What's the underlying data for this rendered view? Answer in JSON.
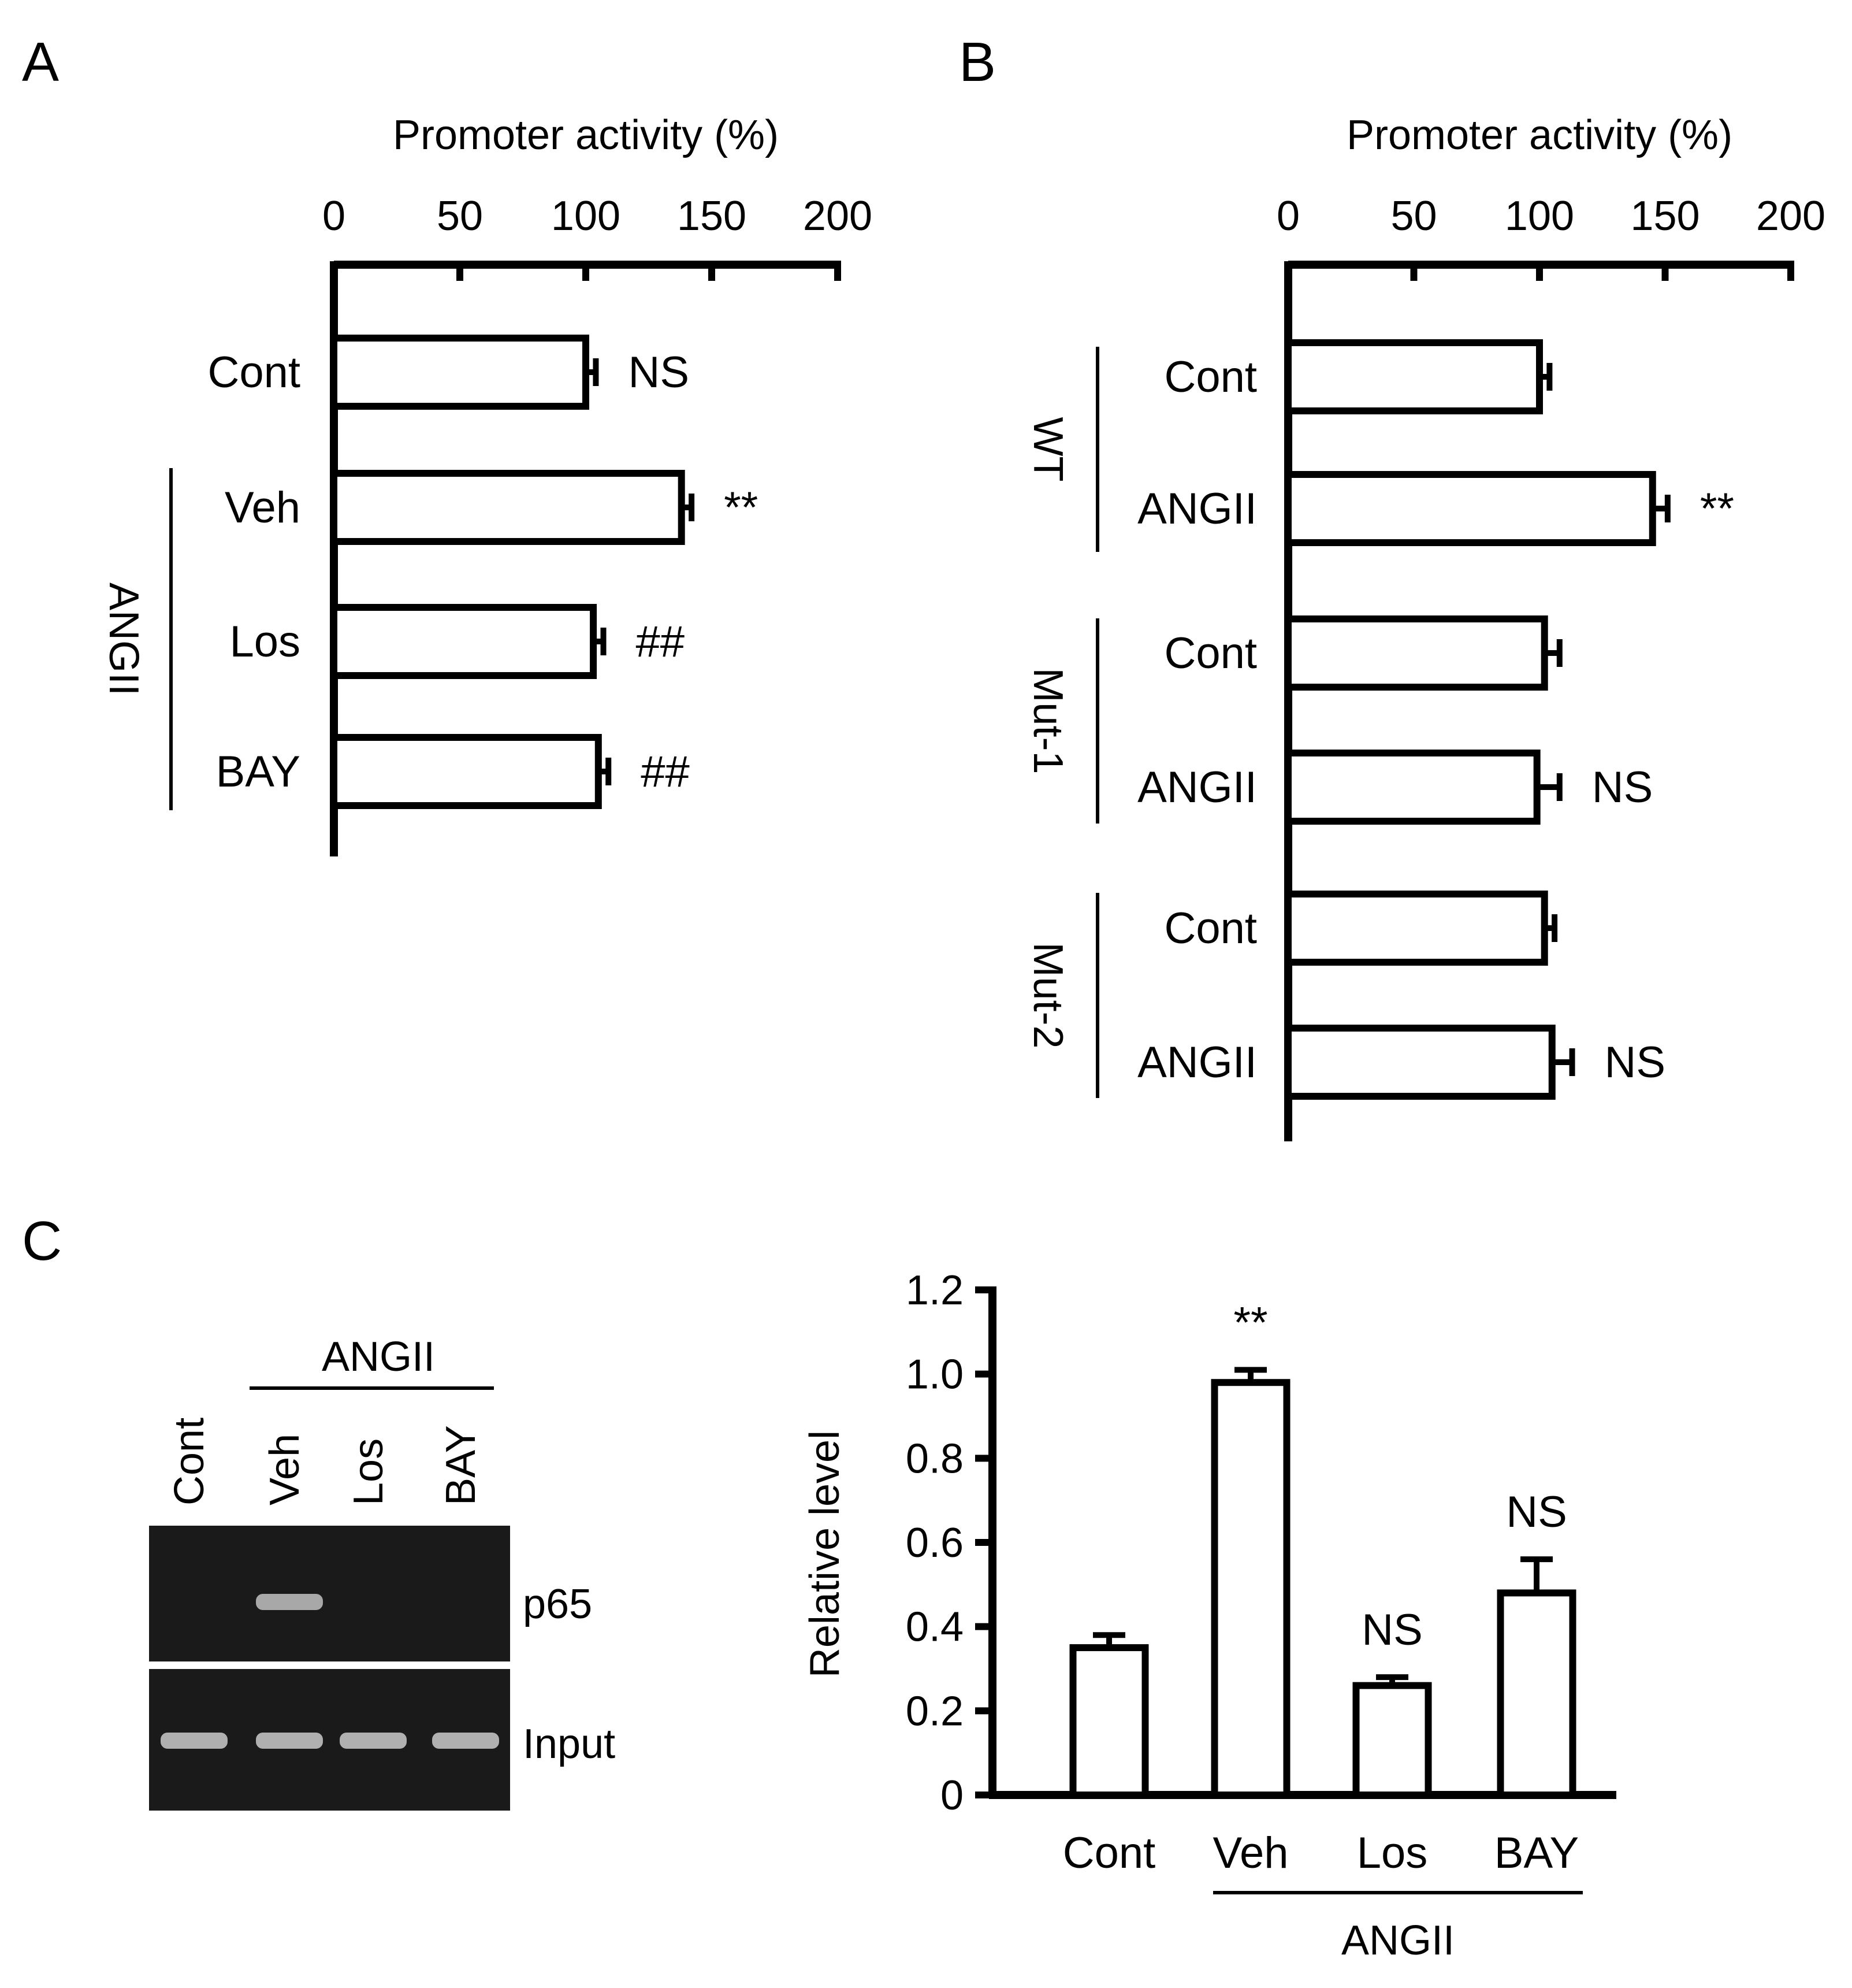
{
  "panels": {
    "A": {
      "letter": "A"
    },
    "B": {
      "letter": "B"
    },
    "C": {
      "letter": "C",
      "gel": {
        "group_label": "ANGII",
        "lane_labels": [
          "Cont",
          "Veh",
          "Los",
          "BAY"
        ],
        "row_labels": [
          "p65",
          "Input"
        ],
        "p65_band_intensity": [
          0.0,
          0.75,
          0.0,
          0.0
        ],
        "input_band_intensity": [
          0.8,
          0.8,
          0.8,
          0.8
        ]
      }
    }
  },
  "chart_data": [
    {
      "panel": "A",
      "type": "bar",
      "orientation": "horizontal",
      "xlabel": "Promoter activity (%)",
      "xlim": [
        0,
        200
      ],
      "xticks": [
        "0",
        "50",
        "100",
        "150",
        "200"
      ],
      "categories": [
        "Cont",
        "Veh",
        "Los",
        "BAY"
      ],
      "values": [
        100,
        138,
        103,
        105
      ],
      "errors": [
        4,
        4,
        4,
        4
      ],
      "significance": [
        "NS",
        "**",
        "##",
        "##"
      ],
      "group_labels": [
        {
          "label": "ANGII",
          "categories": [
            "Veh",
            "Los",
            "BAY"
          ]
        }
      ]
    },
    {
      "panel": "B",
      "type": "bar",
      "orientation": "horizontal",
      "xlabel": "Promoter activity (%)",
      "xlim": [
        0,
        200
      ],
      "xticks": [
        "0",
        "50",
        "100",
        "150",
        "200"
      ],
      "categories": [
        "Cont",
        "ANGII",
        "Cont",
        "ANGII",
        "Cont",
        "ANGII"
      ],
      "values": [
        100,
        145,
        102,
        99,
        102,
        105
      ],
      "errors": [
        4,
        6,
        6,
        9,
        4,
        8
      ],
      "significance": [
        "",
        "**",
        "",
        "NS",
        "",
        "NS"
      ],
      "group_labels": [
        {
          "label": "WT",
          "categories": [
            "Cont",
            "ANGII"
          ]
        },
        {
          "label": "Mut-1",
          "categories": [
            "Cont",
            "ANGII"
          ]
        },
        {
          "label": "Mut-2",
          "categories": [
            "Cont",
            "ANGII"
          ]
        }
      ]
    },
    {
      "panel": "C",
      "type": "bar",
      "orientation": "vertical",
      "ylabel": "Relative level",
      "ylim": [
        0,
        1.2
      ],
      "yticks": [
        "0",
        "0.2",
        "0.4",
        "0.6",
        "0.8",
        "1.0",
        "1.2"
      ],
      "categories": [
        "Cont",
        "Veh",
        "Los",
        "BAY"
      ],
      "values": [
        0.35,
        0.98,
        0.26,
        0.48
      ],
      "errors": [
        0.03,
        0.03,
        0.02,
        0.08
      ],
      "significance": [
        "",
        "**",
        "NS",
        "NS"
      ],
      "group_labels": [
        {
          "label": "ANGII",
          "categories": [
            "Veh",
            "Los",
            "BAY"
          ]
        }
      ]
    }
  ]
}
